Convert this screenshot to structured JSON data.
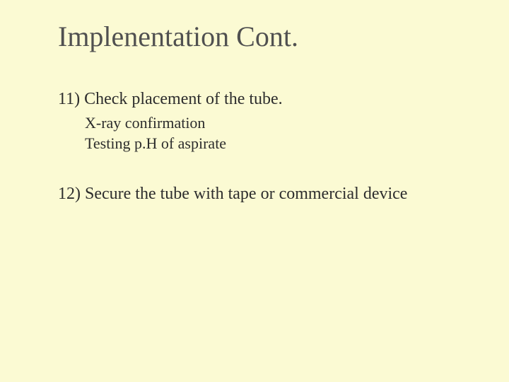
{
  "slide": {
    "background_color": "#fbfad3",
    "text_color": "#3a3a3a",
    "font_family": "Times New Roman",
    "title": {
      "text": "Implenentation Cont.",
      "fontsize": 40
    },
    "points": [
      {
        "number": "11)",
        "text": "Check placement of the tube.",
        "fontsize": 24,
        "sub": [
          {
            "text": "X-ray confirmation",
            "fontsize": 22
          },
          {
            "text": "Testing p.H of aspirate",
            "fontsize": 22
          }
        ]
      },
      {
        "number": "12)",
        "text": "Secure the tube with tape or commercial device",
        "fontsize": 24
      }
    ]
  },
  "combined": {
    "item11_line": "11) Check placement of the tube.",
    "item11_sub1": "X-ray confirmation",
    "item11_sub2": "Testing p.H of aspirate",
    "item12_line": "12) Secure the tube with tape or commercial device"
  }
}
